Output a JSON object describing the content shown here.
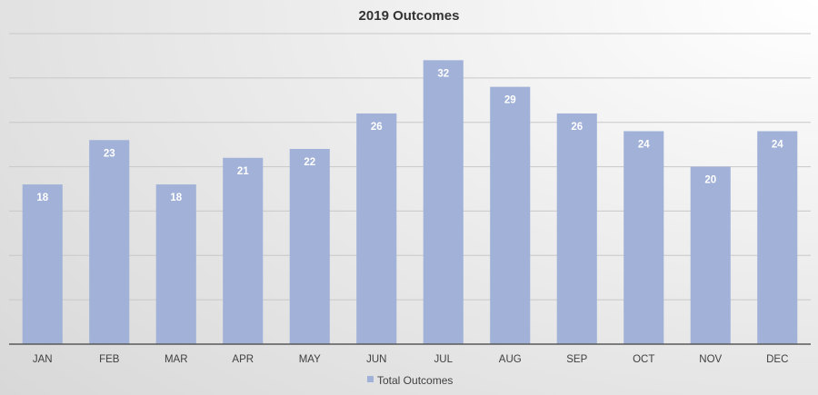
{
  "chart_data": {
    "type": "bar",
    "title": "2019 Outcomes",
    "categories": [
      "JAN",
      "FEB",
      "MAR",
      "APR",
      "MAY",
      "JUN",
      "JUL",
      "AUG",
      "SEP",
      "OCT",
      "NOV",
      "DEC"
    ],
    "series": [
      {
        "name": "Total Outcomes",
        "values": [
          18,
          23,
          18,
          21,
          22,
          26,
          32,
          29,
          26,
          24,
          20,
          24
        ]
      }
    ],
    "xlabel": "",
    "ylabel": "",
    "ylim": [
      0,
      35
    ],
    "gridlines": [
      5,
      10,
      15,
      20,
      25,
      30,
      35
    ],
    "grid": true,
    "y_tick_labels_shown": false,
    "data_labels": true,
    "legend": "bottom",
    "colors": {
      "bar": "#a1b1d7",
      "data_label": "#ffffff",
      "axis": "#595959"
    }
  }
}
